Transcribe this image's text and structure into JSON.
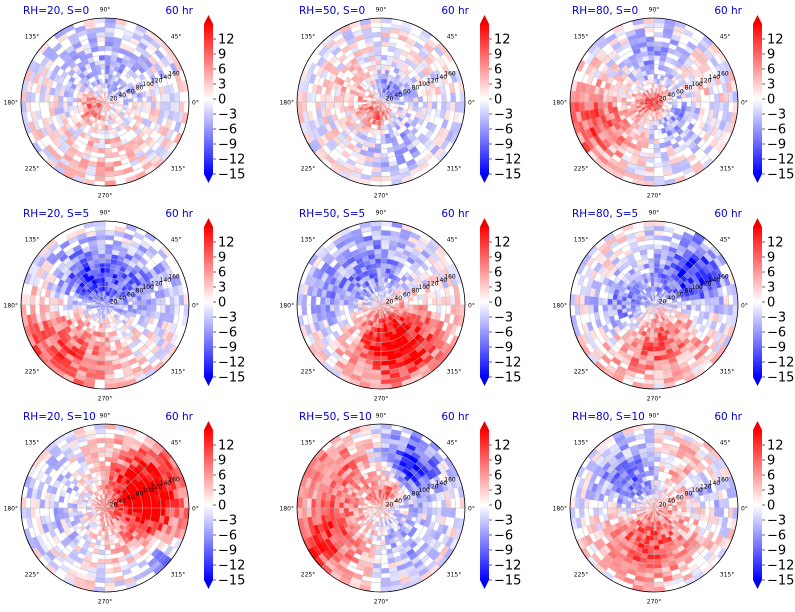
{
  "figure": {
    "panels": [
      {
        "left_title": "RH=20, S=0",
        "right_title": "60 hr"
      },
      {
        "left_title": "RH=50, S=0",
        "right_title": "60 hr"
      },
      {
        "left_title": "RH=80, S=0",
        "right_title": "60 hr"
      },
      {
        "left_title": "RH=20, S=5",
        "right_title": "60 hr"
      },
      {
        "left_title": "RH=50, S=5",
        "right_title": "60 hr"
      },
      {
        "left_title": "RH=80, S=5",
        "right_title": "60 hr"
      },
      {
        "left_title": "RH=20, S=10",
        "right_title": "60 hr"
      },
      {
        "left_title": "RH=50, S=10",
        "right_title": "60 hr"
      },
      {
        "left_title": "RH=80, S=10",
        "right_title": "60 hr"
      }
    ],
    "colors": {
      "title": "#0000cc",
      "positive": "#ff0000",
      "negative": "#0000ff",
      "zero": "#ffffff",
      "grid": "#bbbbbb"
    }
  },
  "chart_data": {
    "type": "heatmap",
    "projection": "polar",
    "grid": true,
    "angle_ticks": [
      "0°",
      "45°",
      "90°",
      "135°",
      "180°",
      "225°",
      "270°",
      "315°"
    ],
    "radial_ticks": [
      "20",
      "40",
      "60",
      "80",
      "100",
      "120",
      "140",
      "160"
    ],
    "radial_range": [
      0,
      180
    ],
    "colorbar": {
      "ticks": [
        "12",
        "9",
        "6",
        "3",
        "0",
        "−3",
        "−6",
        "−9",
        "−12",
        "−15"
      ],
      "range": [
        -15,
        15
      ],
      "colormap": "bwr",
      "extend": "both"
    },
    "panels": [
      {
        "rh": 20,
        "s": 0,
        "pattern": "speckled weak anomalies, small positive patch near center"
      },
      {
        "rh": 50,
        "s": 0,
        "pattern": "mixed ring of positive and negative near center"
      },
      {
        "rh": 80,
        "s": 0,
        "pattern": "strong positive ring at center, broad positive spiral outside, negative band"
      },
      {
        "rh": 20,
        "s": 5,
        "pattern": "negative north, positive southwest"
      },
      {
        "rh": 50,
        "s": 5,
        "pattern": "positive south-southeast, negative north"
      },
      {
        "rh": 80,
        "s": 5,
        "pattern": "negative ring northeast and west, positive interior"
      },
      {
        "rh": 20,
        "s": 10,
        "pattern": "positive east quadrant, weak negative west"
      },
      {
        "rh": 50,
        "s": 10,
        "pattern": "positive southwest and northwest, negative northeast"
      },
      {
        "rh": 80,
        "s": 10,
        "pattern": "positive south band, negative northwest"
      }
    ]
  }
}
